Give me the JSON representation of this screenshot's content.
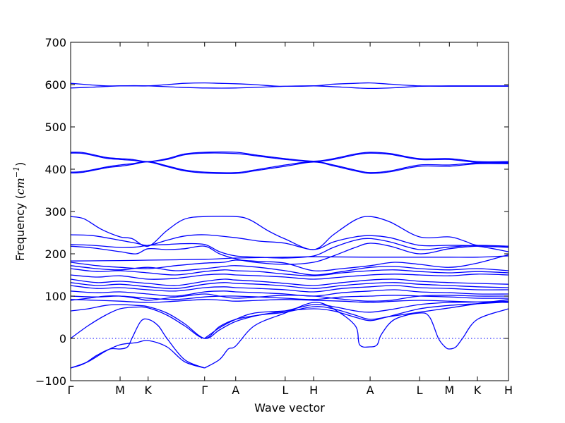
{
  "chart_data": {
    "type": "line",
    "title": "",
    "xlabel": "Wave vector",
    "ylabel_prefix": "Frequency (",
    "ylabel_unit": "cm",
    "ylabel_exponent": "−1",
    "ylabel_suffix": ")",
    "ylim": [
      -100,
      700
    ],
    "yticks": [
      -100,
      0,
      100,
      200,
      300,
      400,
      500,
      600,
      700
    ],
    "grid": false,
    "line_color": "#0000ff",
    "zero_line_style": "dotted",
    "high_symmetry_points": [
      {
        "label": "Γ",
        "x": 0.0
      },
      {
        "label": "M",
        "x": 0.113
      },
      {
        "label": "K",
        "x": 0.177
      },
      {
        "label": "Γ",
        "x": 0.306
      },
      {
        "label": "A",
        "x": 0.377
      },
      {
        "label": "L",
        "x": 0.49
      },
      {
        "label": "H",
        "x": 0.555
      },
      {
        "label": "A",
        "x": 0.684
      },
      {
        "label": "L",
        "x": 0.797
      },
      {
        "label": "M",
        "x": 0.865
      },
      {
        "label": "K",
        "x": 0.929
      },
      {
        "label": "H",
        "x": 1.0
      }
    ],
    "series": [
      {
        "x": [
          0,
          0.05,
          0.08,
          0.113,
          0.14,
          0.177,
          0.22,
          0.26,
          0.306,
          0.34,
          0.377,
          0.42,
          0.46,
          0.49,
          0.555,
          0.6,
          0.65,
          0.684,
          0.73,
          0.797,
          0.865,
          0.9,
          0.929,
          1.0
        ],
        "y": [
          603,
          599,
          597,
          597,
          597,
          597,
          600,
          603,
          604,
          603,
          602,
          600,
          597,
          596,
          597,
          601,
          603,
          604,
          601,
          597,
          597,
          597,
          597,
          597
        ]
      },
      {
        "x": [
          0,
          0.05,
          0.113,
          0.177,
          0.24,
          0.306,
          0.377,
          0.49,
          0.555,
          0.62,
          0.684,
          0.75,
          0.797,
          0.865,
          0.929,
          1.0
        ],
        "y": [
          592,
          594,
          597,
          597,
          594,
          592,
          592,
          596,
          597,
          594,
          591,
          593,
          596,
          596,
          596,
          596
        ]
      },
      {
        "x": [
          0,
          0.03,
          0.08,
          0.113,
          0.14,
          0.177,
          0.22,
          0.26,
          0.306,
          0.377,
          0.42,
          0.49,
          0.555,
          0.6,
          0.65,
          0.684,
          0.73,
          0.797,
          0.865,
          0.929,
          1.0
        ],
        "y": [
          440,
          439,
          428,
          425,
          423,
          418,
          425,
          436,
          440,
          440,
          434,
          425,
          419,
          425,
          436,
          440,
          437,
          425,
          425,
          418,
          418
        ]
      },
      {
        "x": [
          0,
          0.03,
          0.08,
          0.113,
          0.14,
          0.177,
          0.22,
          0.26,
          0.306,
          0.377,
          0.42,
          0.49,
          0.555,
          0.6,
          0.65,
          0.684,
          0.73,
          0.797,
          0.865,
          0.929,
          1.0
        ],
        "y": [
          438,
          437,
          426,
          423,
          421,
          418,
          423,
          434,
          438,
          437,
          432,
          423,
          418,
          423,
          434,
          438,
          435,
          423,
          423,
          416,
          416
        ]
      },
      {
        "x": [
          0,
          0.03,
          0.08,
          0.113,
          0.14,
          0.177,
          0.22,
          0.26,
          0.306,
          0.377,
          0.42,
          0.49,
          0.555,
          0.6,
          0.65,
          0.684,
          0.73,
          0.797,
          0.865,
          0.929,
          1.0
        ],
        "y": [
          393,
          395,
          405,
          410,
          413,
          418,
          408,
          398,
          393,
          392,
          398,
          410,
          418,
          410,
          398,
          392,
          396,
          410,
          410,
          415,
          415
        ]
      },
      {
        "x": [
          0,
          0.03,
          0.08,
          0.113,
          0.14,
          0.177,
          0.22,
          0.26,
          0.306,
          0.377,
          0.42,
          0.49,
          0.555,
          0.6,
          0.65,
          0.684,
          0.73,
          0.797,
          0.865,
          0.929,
          1.0
        ],
        "y": [
          391,
          393,
          403,
          407,
          411,
          417,
          406,
          396,
          391,
          390,
          396,
          407,
          417,
          408,
          396,
          390,
          394,
          407,
          407,
          413,
          413
        ]
      },
      {
        "x": [
          0,
          0.03,
          0.07,
          0.113,
          0.14,
          0.177,
          0.22,
          0.26,
          0.306,
          0.377,
          0.41,
          0.45,
          0.49,
          0.555,
          0.6,
          0.65,
          0.684,
          0.73,
          0.797,
          0.865,
          0.9,
          0.929,
          1.0
        ],
        "y": [
          288,
          283,
          258,
          240,
          236,
          218,
          255,
          282,
          288,
          288,
          280,
          255,
          235,
          210,
          245,
          280,
          288,
          275,
          240,
          240,
          230,
          220,
          215
        ]
      },
      {
        "x": [
          0,
          0.05,
          0.113,
          0.15,
          0.177,
          0.22,
          0.26,
          0.306,
          0.377,
          0.43,
          0.49,
          0.555,
          0.6,
          0.65,
          0.684,
          0.73,
          0.797,
          0.865,
          0.929,
          1.0
        ],
        "y": [
          245,
          243,
          232,
          225,
          220,
          232,
          242,
          245,
          238,
          230,
          225,
          210,
          228,
          240,
          243,
          238,
          220,
          220,
          218,
          205
        ]
      },
      {
        "x": [
          0,
          0.05,
          0.113,
          0.15,
          0.177,
          0.22,
          0.26,
          0.306,
          0.34,
          0.377,
          0.43,
          0.49,
          0.555,
          0.6,
          0.65,
          0.684,
          0.73,
          0.797,
          0.865,
          0.929,
          1.0
        ],
        "y": [
          222,
          220,
          215,
          216,
          220,
          222,
          224,
          222,
          205,
          195,
          192,
          190,
          195,
          215,
          232,
          236,
          228,
          210,
          216,
          220,
          218
        ]
      },
      {
        "x": [
          0,
          0.05,
          0.113,
          0.15,
          0.177,
          0.22,
          0.26,
          0.306,
          0.34,
          0.377,
          0.42,
          0.49,
          0.555,
          0.6,
          0.65,
          0.684,
          0.73,
          0.797,
          0.865,
          0.929,
          1.0
        ],
        "y": [
          218,
          214,
          205,
          200,
          212,
          210,
          212,
          218,
          200,
          188,
          180,
          175,
          180,
          195,
          215,
          225,
          218,
          200,
          212,
          218,
          216
        ]
      },
      {
        "x": [
          0,
          0.113,
          0.177,
          0.306,
          0.377,
          0.49,
          0.555,
          0.684,
          0.797,
          0.865,
          0.929,
          1.0
        ],
        "y": [
          183,
          184,
          185,
          187,
          190,
          192,
          193,
          192,
          192,
          192,
          192,
          195
        ]
      },
      {
        "x": [
          0,
          0.06,
          0.113,
          0.177,
          0.24,
          0.306,
          0.35,
          0.377,
          0.43,
          0.49,
          0.555,
          0.62,
          0.684,
          0.74,
          0.797,
          0.865,
          0.929,
          1.0
        ],
        "y": [
          180,
          172,
          168,
          165,
          172,
          178,
          180,
          185,
          182,
          178,
          160,
          165,
          172,
          180,
          175,
          168,
          178,
          198
        ]
      },
      {
        "x": [
          0,
          0.06,
          0.113,
          0.177,
          0.24,
          0.306,
          0.35,
          0.377,
          0.43,
          0.49,
          0.555,
          0.62,
          0.684,
          0.74,
          0.797,
          0.865,
          0.929,
          1.0
        ],
        "y": [
          172,
          165,
          162,
          168,
          160,
          165,
          170,
          172,
          168,
          160,
          150,
          158,
          168,
          170,
          165,
          162,
          165,
          160
        ]
      },
      {
        "x": [
          0,
          0.06,
          0.113,
          0.177,
          0.24,
          0.306,
          0.35,
          0.377,
          0.43,
          0.49,
          0.555,
          0.62,
          0.684,
          0.74,
          0.797,
          0.865,
          0.929,
          1.0
        ],
        "y": [
          165,
          158,
          160,
          155,
          150,
          158,
          162,
          160,
          158,
          152,
          148,
          155,
          160,
          162,
          158,
          155,
          158,
          155
        ]
      },
      {
        "x": [
          0,
          0.06,
          0.113,
          0.177,
          0.24,
          0.306,
          0.35,
          0.377,
          0.43,
          0.49,
          0.555,
          0.62,
          0.684,
          0.74,
          0.797,
          0.865,
          0.929,
          1.0
        ],
        "y": [
          150,
          145,
          148,
          140,
          142,
          150,
          152,
          150,
          148,
          145,
          140,
          145,
          150,
          152,
          150,
          148,
          152,
          150
        ]
      },
      {
        "x": [
          0,
          0.06,
          0.113,
          0.177,
          0.24,
          0.306,
          0.35,
          0.377,
          0.43,
          0.49,
          0.555,
          0.62,
          0.684,
          0.74,
          0.797,
          0.865,
          0.929,
          1.0
        ],
        "y": [
          140,
          132,
          135,
          130,
          125,
          135,
          140,
          138,
          135,
          130,
          125,
          132,
          138,
          140,
          135,
          132,
          130,
          128
        ]
      },
      {
        "x": [
          0,
          0.06,
          0.113,
          0.177,
          0.24,
          0.306,
          0.35,
          0.377,
          0.43,
          0.49,
          0.555,
          0.62,
          0.684,
          0.74,
          0.797,
          0.865,
          0.929,
          1.0
        ],
        "y": [
          132,
          125,
          128,
          122,
          118,
          128,
          132,
          130,
          128,
          124,
          118,
          125,
          130,
          132,
          128,
          125,
          122,
          120
        ]
      },
      {
        "x": [
          0,
          0.06,
          0.113,
          0.177,
          0.24,
          0.306,
          0.35,
          0.377,
          0.43,
          0.49,
          0.555,
          0.62,
          0.684,
          0.74,
          0.797,
          0.865,
          0.929,
          1.0
        ],
        "y": [
          125,
          118,
          120,
          115,
          112,
          120,
          122,
          120,
          118,
          115,
          110,
          118,
          122,
          125,
          120,
          118,
          115,
          115
        ]
      },
      {
        "x": [
          0,
          0.06,
          0.113,
          0.177,
          0.24,
          0.306,
          0.35,
          0.377,
          0.43,
          0.49,
          0.555,
          0.62,
          0.684,
          0.74,
          0.797,
          0.865,
          0.929,
          1.0
        ],
        "y": [
          112,
          108,
          110,
          105,
          100,
          110,
          112,
          110,
          108,
          105,
          100,
          108,
          112,
          115,
          110,
          108,
          105,
          105
        ]
      },
      {
        "x": [
          0,
          0.06,
          0.113,
          0.177,
          0.24,
          0.306,
          0.35,
          0.377,
          0.43,
          0.49,
          0.555,
          0.62,
          0.684,
          0.74,
          0.797,
          0.865,
          0.929,
          1.0
        ],
        "y": [
          100,
          98,
          100,
          95,
          92,
          98,
          100,
          100,
          98,
          95,
          92,
          98,
          100,
          102,
          100,
          98,
          95,
          95
        ]
      },
      {
        "x": [
          0,
          0.06,
          0.113,
          0.177,
          0.24,
          0.306,
          0.35,
          0.377,
          0.43,
          0.49,
          0.555,
          0.62,
          0.684,
          0.74,
          0.797,
          0.865,
          0.929,
          1.0
        ],
        "y": [
          92,
          90,
          88,
          85,
          88,
          92,
          90,
          88,
          90,
          92,
          90,
          88,
          85,
          88,
          90,
          88,
          86,
          85
        ]
      },
      {
        "x": [
          0,
          0.04,
          0.08,
          0.113,
          0.15,
          0.177,
          0.22,
          0.26,
          0.306,
          0.34,
          0.377,
          0.43,
          0.49,
          0.555,
          0.6,
          0.65,
          0.684,
          0.73,
          0.797,
          0.865,
          0.929,
          1.0
        ],
        "y": [
          90,
          95,
          100,
          100,
          95,
          90,
          95,
          100,
          105,
          100,
          95,
          98,
          102,
          100,
          95,
          90,
          88,
          90,
          100,
          102,
          100,
          100
        ]
      },
      {
        "x": [
          0,
          0.04,
          0.08,
          0.113,
          0.15,
          0.177,
          0.22,
          0.26,
          0.306,
          0.34,
          0.377,
          0.43,
          0.49,
          0.555,
          0.6,
          0.65,
          0.684,
          0.73,
          0.797,
          0.865,
          0.929,
          1.0
        ],
        "y": [
          65,
          70,
          78,
          80,
          78,
          75,
          60,
          35,
          0,
          20,
          40,
          55,
          65,
          80,
          75,
          65,
          62,
          68,
          80,
          85,
          86,
          88
        ]
      },
      {
        "x": [
          0,
          0.04,
          0.08,
          0.113,
          0.15,
          0.177,
          0.22,
          0.26,
          0.306,
          0.34,
          0.377,
          0.43,
          0.49,
          0.555,
          0.6,
          0.65,
          0.684,
          0.73,
          0.797,
          0.865,
          0.929,
          1.0
        ],
        "y": [
          0,
          30,
          55,
          70,
          74,
          72,
          55,
          30,
          0,
          28,
          45,
          55,
          62,
          75,
          70,
          55,
          45,
          52,
          62,
          72,
          82,
          92
        ]
      },
      {
        "x": [
          0,
          0.03,
          0.06,
          0.09,
          0.113,
          0.13,
          0.14,
          0.16,
          0.177,
          0.2,
          0.22,
          0.26,
          0.306
        ],
        "y": [
          -70,
          -60,
          -40,
          -25,
          -25,
          -20,
          0,
          40,
          45,
          30,
          0,
          -50,
          -70
        ]
      },
      {
        "x": [
          0,
          0.04,
          0.08,
          0.113,
          0.15,
          0.177,
          0.22,
          0.26,
          0.306
        ],
        "y": [
          -70,
          -55,
          -30,
          -15,
          -10,
          -5,
          -20,
          -55,
          -70
        ]
      },
      {
        "x": [
          0.306,
          0.34,
          0.36,
          0.377,
          0.42,
          0.49,
          0.555,
          0.6,
          0.65,
          0.66,
          0.684,
          0.7,
          0.71,
          0.74,
          0.797,
          0.82,
          0.84,
          0.855,
          0.865,
          0.88,
          0.895,
          0.929,
          1.0
        ],
        "y": [
          -70,
          -50,
          -25,
          -18,
          30,
          60,
          85,
          70,
          30,
          -15,
          -20,
          -15,
          10,
          45,
          60,
          50,
          0,
          -20,
          -25,
          -20,
          0,
          45,
          70
        ]
      },
      {
        "x": [
          0.306,
          0.34,
          0.377,
          0.42,
          0.49,
          0.555,
          0.6,
          0.65,
          0.684,
          0.72,
          0.797,
          0.865,
          0.929,
          1.0
        ],
        "y": [
          0,
          25,
          45,
          60,
          65,
          70,
          65,
          50,
          42,
          50,
          70,
          78,
          82,
          86
        ]
      }
    ]
  }
}
